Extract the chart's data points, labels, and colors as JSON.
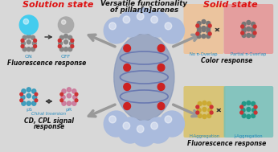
{
  "title_center_line1": "Versatile functionality",
  "title_center_line2": "of pillar[n]arenes",
  "title_left": "Solution state",
  "title_right": "Solid state",
  "label_fl_response": "Fluorescence response",
  "label_cd_cpl": "CD, CPL signal",
  "label_cd_cpl2": "response",
  "label_color_response": "Color response",
  "label_fl_response2": "Fluorescence response",
  "label_on": "ON",
  "label_off": "OFF",
  "label_ps": "pS",
  "label_pr": "pR",
  "label_chiral": "Chiral Inversion",
  "label_no_pi": "No π-Overlap",
  "label_partial_pi": "Partial π-Overlap",
  "label_h_agg": "H-Aggregation",
  "label_j_agg": "J-Aggregation",
  "bg_color": "#d8d8d8",
  "title_left_color": "#dd1111",
  "title_right_color": "#dd1111",
  "center_title_color": "#111111",
  "arrow_gray": "#999999",
  "sub_label_color": "#2288bb",
  "chiral_label_color": "#2288bb",
  "pillar_sphere_color": "#99aacccc",
  "pillar_sphere_hex": "#aabbdd",
  "pillar_body_hex": "#8899bb",
  "pillar_red": "#cc2222",
  "tl_bg": "#e8e8e8",
  "bl_bg": "#e0e0e0",
  "tr_panel1_bg": "#f0c090",
  "tr_panel2_bg": "#e89090",
  "tr_outer_bg": "#f0c8b0",
  "br_panel1_bg": "#d8c060",
  "br_panel2_bg": "#70c0b8",
  "br_outer_bg": "#b8d8b0",
  "on_sphere_color": "#44ccee",
  "off_sphere_color": "#aaaaaa",
  "mol_gray": "#888888",
  "mol_red": "#cc3333",
  "mol_blue": "#3399bb",
  "mol_pink": "#cc7799",
  "mol_yellow": "#ccaa33",
  "mol_teal": "#229988"
}
